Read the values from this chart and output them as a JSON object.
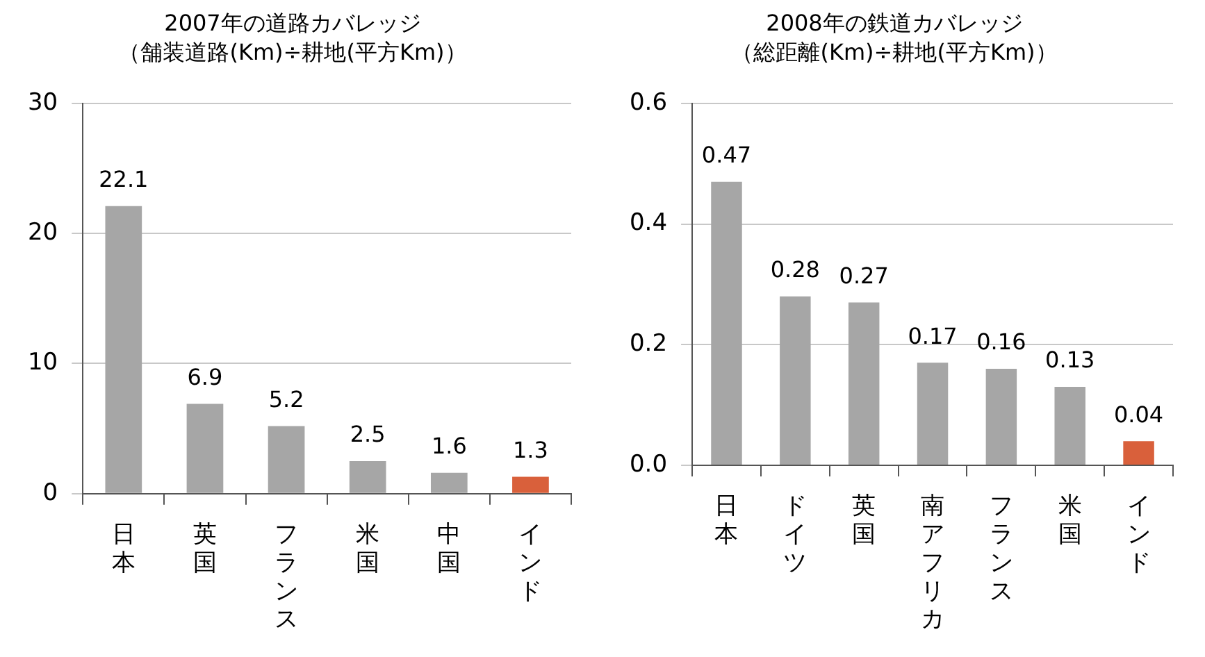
{
  "chart_data": [
    {
      "type": "bar",
      "title": "2007年の道路カバレッジ",
      "subtitle": "（舗装道路(Km)÷耕地(平方Km)）",
      "categories": [
        "日本",
        "英国",
        "フランス",
        "米国",
        "中国",
        "インド"
      ],
      "values": [
        22.1,
        6.9,
        5.2,
        2.5,
        1.6,
        1.3
      ],
      "colors": [
        "#a6a6a6",
        "#a6a6a6",
        "#a6a6a6",
        "#a6a6a6",
        "#a6a6a6",
        "#d9603b"
      ],
      "ylim": [
        0,
        30
      ],
      "yticks": [
        0,
        10,
        20,
        30
      ],
      "grid": "y",
      "data_labels": true
    },
    {
      "type": "bar",
      "title": "2008年の鉄道カバレッジ",
      "subtitle": "（総距離(Km)÷耕地(平方Km)）",
      "categories": [
        "日本",
        "ドイツ",
        "英国",
        "南アフリカ",
        "フランス",
        "米国",
        "インド"
      ],
      "values": [
        0.47,
        0.28,
        0.27,
        0.17,
        0.16,
        0.13,
        0.04
      ],
      "colors": [
        "#a6a6a6",
        "#a6a6a6",
        "#a6a6a6",
        "#a6a6a6",
        "#a6a6a6",
        "#a6a6a6",
        "#d9603b"
      ],
      "ylim": [
        0,
        0.6
      ],
      "yticks": [
        {
          "value": 0,
          "label": "0.0"
        },
        0.2,
        0.4,
        0.6
      ],
      "grid": "y",
      "data_labels": true
    }
  ]
}
